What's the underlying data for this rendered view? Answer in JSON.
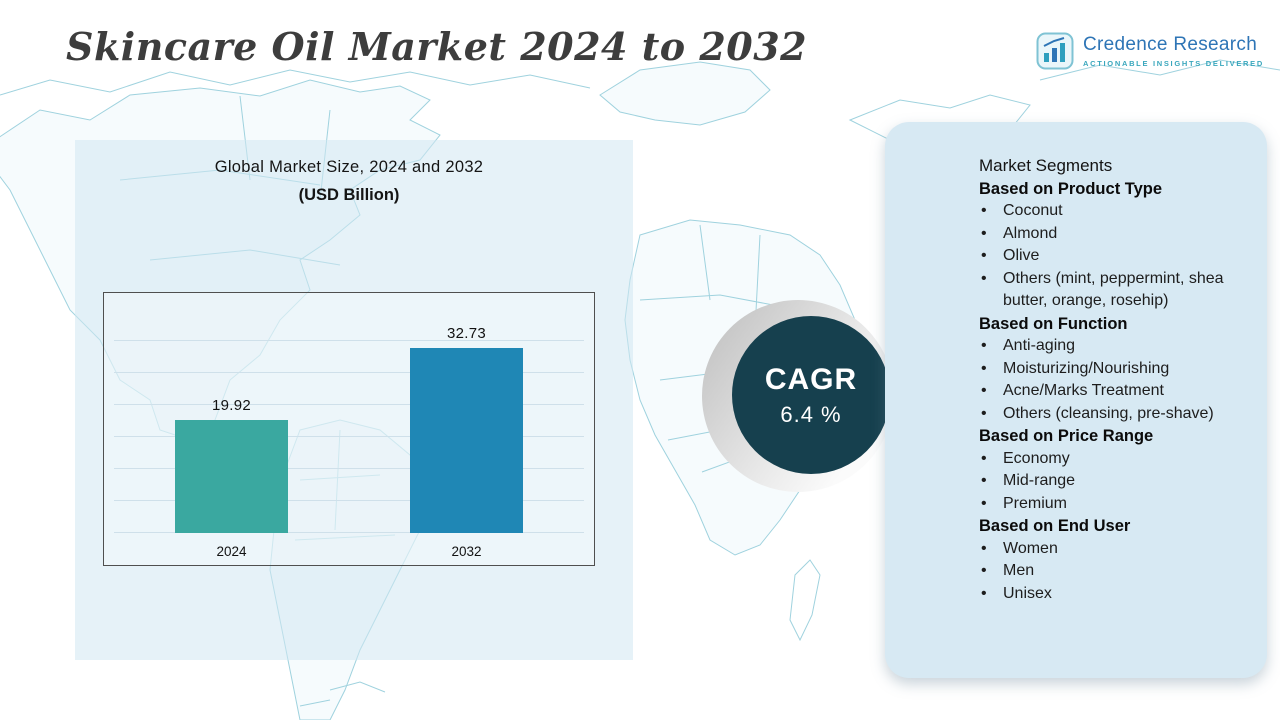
{
  "page": {
    "title": "Skincare Oil Market 2024 to 2032"
  },
  "logo": {
    "name": "Credence Research",
    "tagline": "ACTIONABLE INSIGHTS DELIVERED"
  },
  "chart": {
    "title_line1": "Global Market Size, 2024 and 2032",
    "title_line2": "(USD Billion)"
  },
  "chart_data": {
    "type": "bar",
    "title": "Global Market Size, 2024 and 2032 (USD Billion)",
    "categories": [
      "2024",
      "2032"
    ],
    "values": [
      19.92,
      32.73
    ],
    "xlabel": "",
    "ylabel": "",
    "ylim": [
      0,
      40
    ],
    "grid": "horizontal",
    "legend": "none",
    "colors": [
      "#3aa8a0",
      "#1f87b5"
    ]
  },
  "cagr": {
    "label": "CAGR",
    "value": "6.4 %"
  },
  "segments": {
    "title": "Market Segments",
    "groups": [
      {
        "heading": "Based on Product Type",
        "items": [
          "Coconut",
          "Almond",
          "Olive",
          "Others (mint, peppermint, shea butter, orange, rosehip)"
        ]
      },
      {
        "heading": "Based on Function",
        "items": [
          "Anti-aging",
          "Moisturizing/Nourishing",
          "Acne/Marks Treatment",
          "Others (cleansing, pre-shave)"
        ]
      },
      {
        "heading": "Based on Price Range",
        "items": [
          "Economy",
          "Mid-range",
          "Premium"
        ]
      },
      {
        "heading": "Based on End User",
        "items": [
          "Women",
          "Men",
          "Unisex"
        ]
      }
    ]
  },
  "theme": {
    "panel_blue": "#d7e9f3",
    "cagr_dark": "#16404e",
    "map_line": "#9fd2de",
    "title_gray": "#3d3d3d",
    "logo_blue": "#2e75b6",
    "logo_teal": "#3aa7bd"
  }
}
